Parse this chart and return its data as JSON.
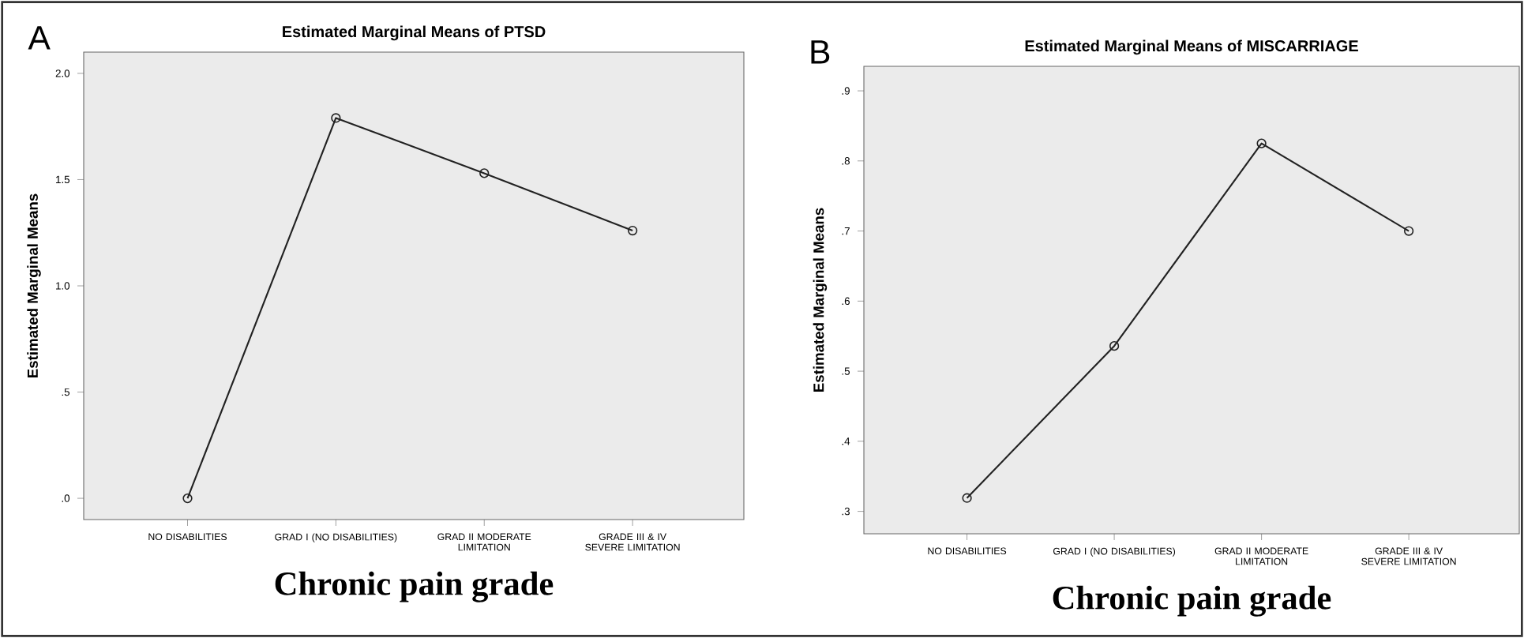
{
  "chart_data": [
    {
      "type": "line",
      "title": "Estimated Marginal Means of PTSD",
      "xlabel": "Chronic pain grade",
      "ylabel": "Estimated Marginal Means",
      "annotations": [
        "A"
      ],
      "categories": [
        "NO DISABILITIES",
        "GRAD I (NO DISABILITIES)",
        "GRAD II MODERATE LIMITATION",
        "GRADE III & IV SEVERE LIMITATION"
      ],
      "series": [
        {
          "color": "#222222",
          "values": [
            0.0,
            1.79,
            1.53,
            1.26
          ]
        }
      ],
      "ylim": [
        -0.1,
        2.1
      ],
      "yticks": [
        {
          "value": 0,
          "label": ".0"
        },
        {
          "value": 0.5,
          "label": ".5"
        },
        {
          "value": 1,
          "label": "1.0"
        },
        {
          "value": 1.5,
          "label": "1.5"
        },
        {
          "value": 2,
          "label": "2.0"
        }
      ],
      "marker": "circle",
      "line_style": "solid",
      "grid": false
    },
    {
      "type": "line",
      "title": "Estimated Marginal Means of MISCARRIAGE",
      "xlabel": "Chronic pain grade",
      "ylabel": "Estimated Marginal Means",
      "annotations": [
        "B"
      ],
      "categories": [
        "NO DISABILITIES",
        "GRAD I (NO DISABILITIES)",
        "GRAD II MODERATE LIMITATION",
        "GRADE III & IV SEVERE LIMITATION"
      ],
      "series": [
        {
          "color": "#222222",
          "values": [
            0.319,
            0.536,
            0.825,
            0.7
          ]
        }
      ],
      "ylim": [
        0.268,
        0.935
      ],
      "yticks": [
        {
          "value": 0.3,
          "label": ".3"
        },
        {
          "value": 0.4,
          "label": ".4"
        },
        {
          "value": 0.5,
          "label": ".5"
        },
        {
          "value": 0.6,
          "label": ".6"
        },
        {
          "value": 0.7,
          "label": ".7"
        },
        {
          "value": 0.8,
          "label": ".8"
        },
        {
          "value": 0.9,
          "label": ".9"
        }
      ],
      "marker": "circle",
      "line_style": "solid",
      "grid": false
    }
  ]
}
